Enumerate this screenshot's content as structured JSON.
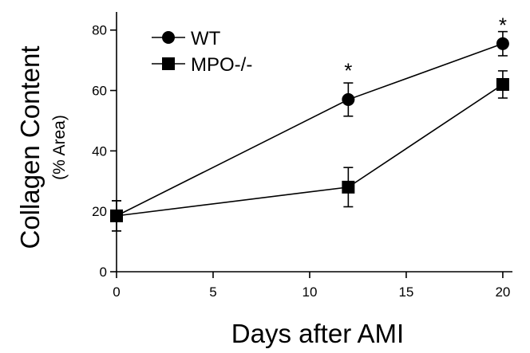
{
  "chart_data": {
    "type": "line",
    "x": [
      0,
      12,
      20
    ],
    "series": [
      {
        "name": "WT",
        "marker": "circle",
        "values": [
          18.5,
          57,
          75.5
        ],
        "errors": [
          5,
          5.5,
          4
        ]
      },
      {
        "name": "MPO-/-",
        "marker": "square",
        "values": [
          18.5,
          28,
          62
        ],
        "errors": [
          5,
          6.5,
          4.5
        ]
      }
    ],
    "xlabel": "Days after AMI",
    "ylabel": "Collagen Content",
    "ylabel_sub": "(% Area)",
    "xlim": [
      0,
      20.5
    ],
    "ylim": [
      0,
      86
    ],
    "xticks": [
      0,
      5,
      10,
      15,
      20
    ],
    "yticks": [
      0,
      20,
      40,
      60,
      80
    ],
    "annotations": [
      {
        "text": "*",
        "x": 12,
        "y": 69
      },
      {
        "text": "*",
        "x": 20,
        "y": 84
      }
    ],
    "legend_position": "top-left",
    "grid": false,
    "colors": {
      "line": "#000000",
      "background": "#ffffff"
    }
  }
}
